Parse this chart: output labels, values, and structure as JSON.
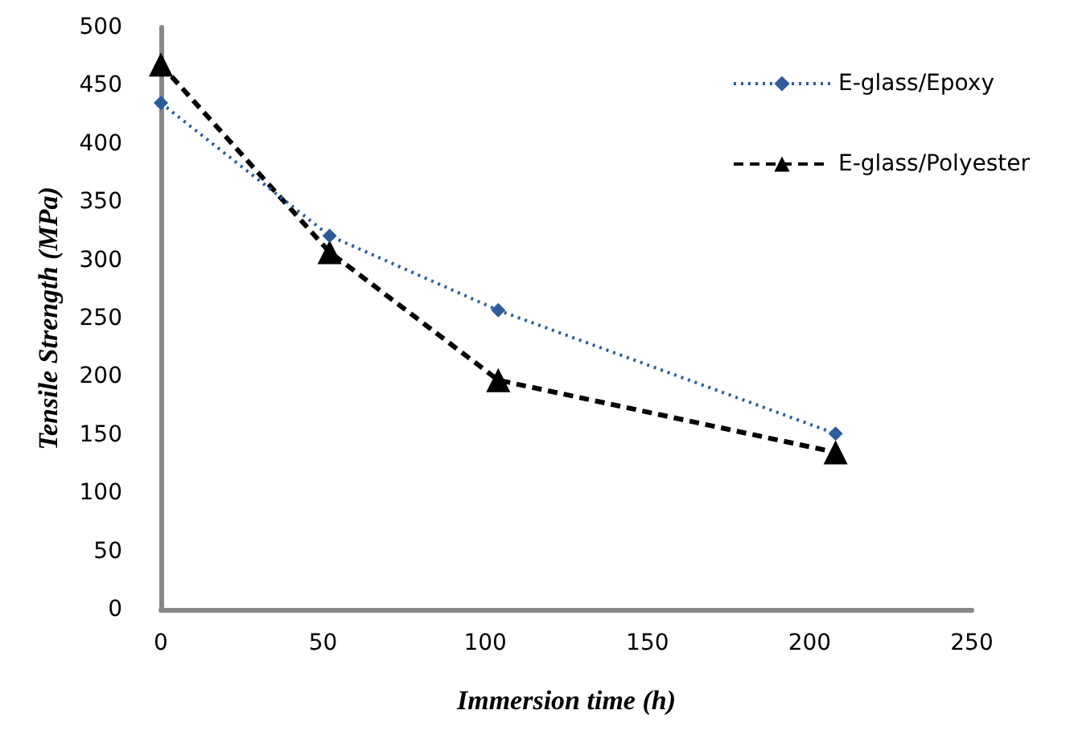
{
  "chart_data": {
    "type": "line",
    "xlabel": "Immersion time (h)",
    "ylabel": "Tensile Strength (MPa)",
    "x": [
      0,
      52,
      104,
      208
    ],
    "series": [
      {
        "name": "E-glass/Epoxy",
        "color": "#2e5c9a",
        "values": [
          435,
          321,
          257,
          151
        ],
        "marker": "diamond",
        "line_style": "dotted"
      },
      {
        "name": "E-glass/Polyester",
        "color": "#000000",
        "values": [
          468,
          307,
          197,
          135
        ],
        "marker": "triangle",
        "line_style": "dashed"
      }
    ],
    "xlim": [
      0,
      250
    ],
    "xticks": [
      0,
      50,
      100,
      150,
      200,
      250
    ],
    "ylim": [
      0,
      500
    ],
    "yticks": [
      0,
      50,
      100,
      150,
      200,
      250,
      300,
      350,
      400,
      450,
      500
    ],
    "grid": false,
    "legend": "top right"
  }
}
